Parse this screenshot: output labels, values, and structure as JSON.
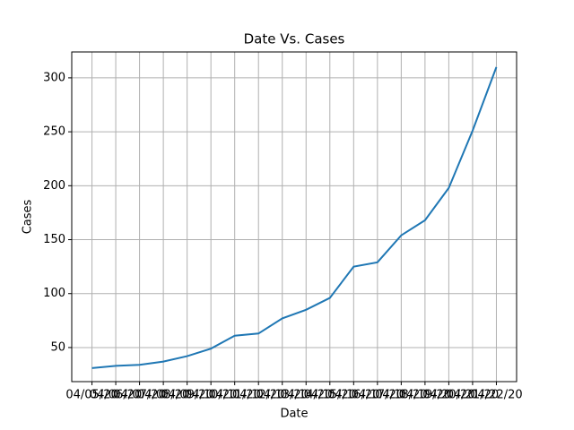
{
  "chart_data": {
    "type": "line",
    "title": "Date Vs. Cases",
    "x_label": "Date",
    "y_label": "Cases",
    "categories": [
      "04/05/20",
      "04/06/20",
      "04/07/20",
      "04/08/20",
      "04/09/20",
      "04/10/20",
      "04/11/20",
      "04/12/20",
      "04/13/20",
      "04/14/20",
      "04/15/20",
      "04/16/20",
      "04/17/20",
      "04/18/20",
      "04/19/20",
      "04/20/20",
      "04/21/20",
      "04/22/20"
    ],
    "series": [
      {
        "name": "Cases",
        "color": "#1f77b4",
        "values": [
          31,
          33,
          34,
          37,
          42,
          49,
          61,
          63,
          77,
          85,
          96,
          125,
          129,
          154,
          168,
          198,
          251,
          310
        ]
      }
    ],
    "ylim": [
      18.4,
      324
    ],
    "yticks": [
      50,
      100,
      150,
      200,
      250,
      300
    ],
    "grid": true
  }
}
